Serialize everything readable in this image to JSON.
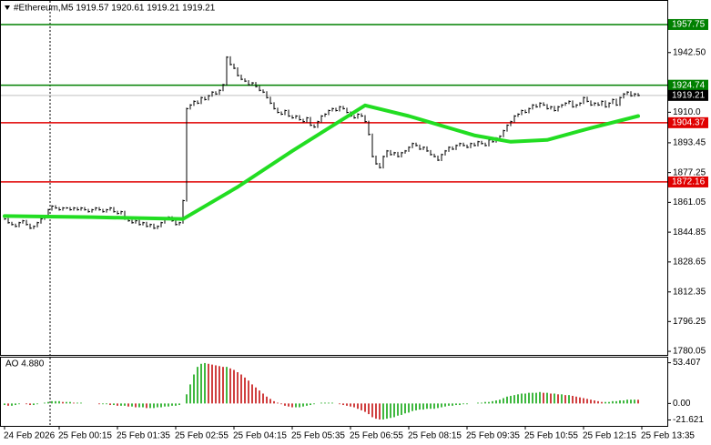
{
  "chart_data": [
    {
      "type": "ohlc",
      "title": "#Ethereum,M5  1919.57 1920.61 1919.21 1919.21",
      "color": "#000000",
      "ylim": [
        1778.1,
        1970.6
      ],
      "yticks": [
        {
          "value": 1942.5,
          "label": "1942.50"
        },
        {
          "value": 1910.05,
          "label": "1910.0"
        },
        1893.45,
        1877.25,
        1861.05,
        1844.85,
        1828.65,
        1812.35,
        1796.25,
        1780.05
      ],
      "xticks": [
        {
          "value": 0,
          "label": "24 Feb 2026"
        },
        {
          "value": 15,
          "label": "25 Feb 00:15"
        },
        {
          "value": 31,
          "label": "25 Feb 01:35"
        },
        {
          "value": 47,
          "label": "25 Feb 02:55"
        },
        {
          "value": 63,
          "label": "25 Feb 04:15"
        },
        {
          "value": 79,
          "label": "25 Feb 05:35"
        },
        {
          "value": 95,
          "label": "25 Feb 06:55"
        },
        {
          "value": 111,
          "label": "25 Feb 08:15"
        },
        {
          "value": 127,
          "label": "25 Feb 09:35"
        },
        {
          "value": 143,
          "label": "25 Feb 10:55"
        },
        {
          "value": 159,
          "label": "25 Feb 12:15"
        },
        {
          "value": 175,
          "label": "25 Feb 13:35"
        }
      ],
      "values": [
        1852,
        1850,
        1849,
        1848,
        1850,
        1851,
        1849,
        1847,
        1848,
        1850,
        1852,
        1853,
        1857,
        1859,
        1858,
        1857,
        1858,
        1858,
        1857,
        1858,
        1857,
        1858,
        1857,
        1856,
        1857,
        1858,
        1857,
        1856,
        1857,
        1858,
        1856,
        1855,
        1856,
        1852,
        1851,
        1850,
        1851,
        1849,
        1850,
        1848,
        1849,
        1847,
        1848,
        1850,
        1852,
        1853,
        1851,
        1849,
        1850,
        1862,
        1912,
        1914,
        1916,
        1915,
        1918,
        1917,
        1919,
        1921,
        1920,
        1922,
        1925,
        1940,
        1936,
        1934,
        1930,
        1928,
        1927,
        1925,
        1926,
        1924,
        1922,
        1921,
        1918,
        1915,
        1912,
        1910,
        1909,
        1911,
        1908,
        1907,
        1908,
        1906,
        1905,
        1907,
        1903,
        1902,
        1905,
        1908,
        1909,
        1911,
        1912,
        1911,
        1913,
        1912,
        1910,
        1908,
        1907,
        1909,
        1908,
        1905,
        1898,
        1886,
        1882,
        1880,
        1886,
        1889,
        1887,
        1888,
        1886,
        1888,
        1889,
        1891,
        1893,
        1892,
        1890,
        1891,
        1889,
        1887,
        1886,
        1884,
        1887,
        1889,
        1891,
        1890,
        1892,
        1893,
        1892,
        1891,
        1893,
        1892,
        1894,
        1893,
        1892,
        1895,
        1894,
        1896,
        1897,
        1900,
        1903,
        1905,
        1908,
        1909,
        1911,
        1910,
        1912,
        1914,
        1913,
        1915,
        1914,
        1912,
        1913,
        1911,
        1913,
        1914,
        1915,
        1916,
        1913,
        1914,
        1915,
        1918,
        1916,
        1914,
        1915,
        1914,
        1916,
        1913,
        1915,
        1917,
        1914,
        1918,
        1920,
        1921,
        1919,
        1920,
        1919.21
      ],
      "lines": [
        {
          "color": "#22dd22",
          "x": [
            0,
            24,
            49,
            64,
            79,
            99,
            111,
            129,
            139,
            149,
            161,
            174
          ],
          "values": [
            1853.6,
            1853,
            1852,
            1869.4,
            1889,
            1913.8,
            1908,
            1897.5,
            1894,
            1895,
            1901.5,
            1908
          ]
        }
      ],
      "levels": [
        {
          "value": 1957.75,
          "color": "#008000"
        },
        {
          "value": 1924.74,
          "color": "#008000"
        },
        {
          "value": 1904.37,
          "color": "#e00000"
        },
        {
          "value": 1872.16,
          "color": "#e00000"
        }
      ],
      "last": 1919.21
    },
    {
      "type": "bar",
      "title": "AO 4.880",
      "up_color": "#00a000",
      "down_color": "#c00000",
      "ylim": [
        -29.4,
        60.1
      ],
      "yticks": [
        53.407,
        {
          "value": 0,
          "label": "0.00"
        },
        -21.621
      ],
      "values": [
        -2,
        -3,
        -3,
        -2,
        -1,
        0,
        -1,
        -2,
        -2,
        -1,
        0,
        1,
        2,
        3,
        3,
        3,
        2,
        2,
        2,
        1,
        1,
        1,
        0,
        0,
        0,
        0,
        -1,
        -1,
        -1,
        -2,
        -2,
        -3,
        -3,
        -3,
        -4,
        -4,
        -5,
        -5,
        -5,
        -6,
        -6,
        -6,
        -5,
        -5,
        -4,
        -4,
        -3,
        -3,
        -2,
        0,
        12,
        25,
        38,
        48,
        52,
        53,
        52,
        51,
        50,
        49,
        48,
        48,
        46,
        44,
        41,
        38,
        34,
        30,
        25,
        21,
        17,
        13,
        9,
        6,
        3,
        1,
        -1,
        -3,
        -4,
        -5,
        -5,
        -5,
        -4,
        -3,
        -2,
        -1,
        0,
        1,
        1,
        1,
        1,
        0,
        -1,
        -2,
        -3,
        -4,
        -5,
        -7,
        -9,
        -11,
        -14,
        -18,
        -20,
        -21,
        -21,
        -20,
        -19,
        -18,
        -16,
        -15,
        -13,
        -12,
        -10,
        -9,
        -8,
        -8,
        -7,
        -7,
        -7,
        -6,
        -5,
        -4,
        -3,
        -3,
        -2,
        -2,
        -1,
        -1,
        0,
        0,
        1,
        1,
        2,
        2,
        3,
        4,
        5,
        7,
        9,
        10,
        11,
        12,
        13,
        13,
        14,
        14,
        14,
        15,
        14,
        14,
        13,
        13,
        12,
        12,
        11,
        11,
        10,
        9,
        8,
        7,
        6,
        5,
        4,
        3,
        2,
        2,
        2,
        3,
        3,
        4,
        4,
        5,
        5,
        5,
        4.88
      ]
    }
  ]
}
